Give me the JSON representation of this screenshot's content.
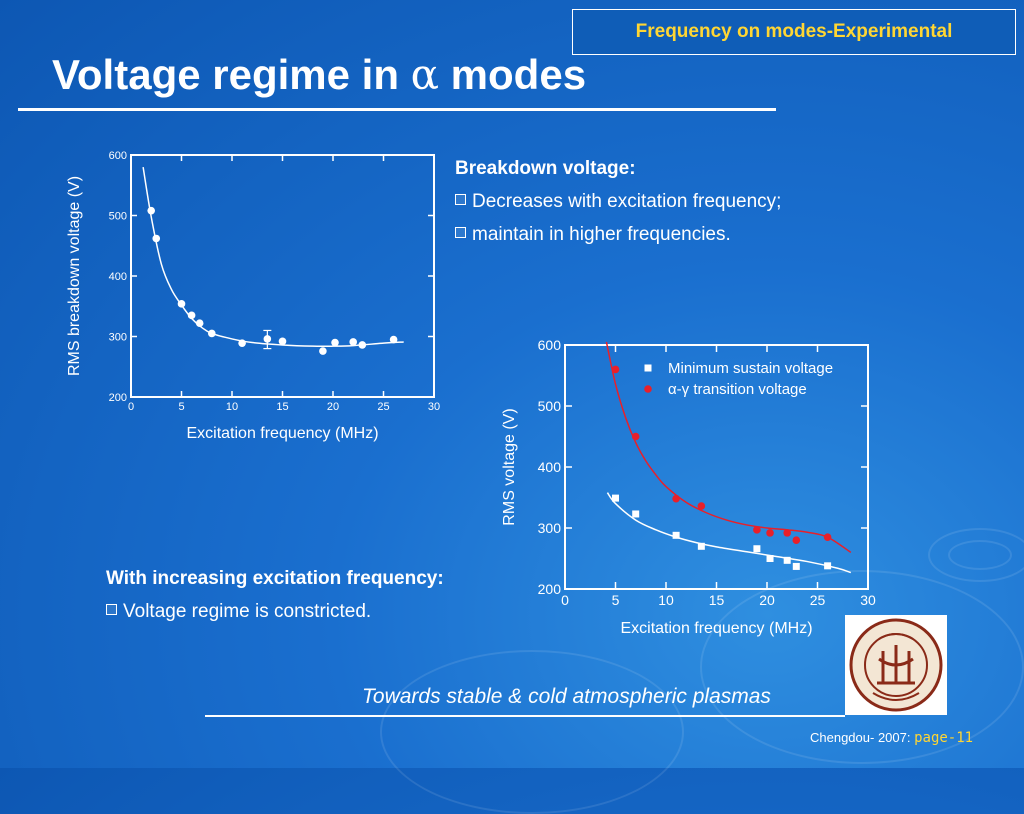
{
  "slide": {
    "section_tag": "Frequency on modes-Experimental",
    "title_prefix": "Voltage regime in ",
    "title_symbol": "α",
    "title_suffix": " modes",
    "bullets_top": {
      "heading": "Breakdown voltage:",
      "items": [
        "Decreases with excitation frequency;",
        "maintain in higher frequencies."
      ]
    },
    "bullets_bottom": {
      "heading": "With increasing excitation frequency:",
      "items": [
        "Voltage regime is constricted."
      ]
    },
    "footer_tagline": "Towards stable & cold atmospheric plasmas",
    "footer_location": "Chengdou- 2007: ",
    "page_number": "page-11",
    "logo_name": "donghua-university-seal"
  },
  "chart_data": [
    {
      "type": "scatter",
      "xlabel": "Excitation frequency (MHz)",
      "ylabel": "RMS breakdown voltage (V)",
      "xlim": [
        0,
        30
      ],
      "ylim": [
        200,
        600
      ],
      "xticks": [
        0,
        5,
        10,
        15,
        20,
        25,
        30
      ],
      "yticks": [
        200,
        300,
        400,
        500,
        600
      ],
      "grid": false,
      "series": [
        {
          "color": "#ffffff",
          "x": [
            2,
            2.5,
            5,
            6,
            6.8,
            8,
            11,
            13.5,
            15,
            19,
            20.2,
            22,
            22.9,
            26
          ],
          "y": [
            508,
            462,
            354,
            335,
            322,
            305,
            289,
            296,
            292,
            276,
            290,
            291,
            286,
            295
          ],
          "error_bar": {
            "x": 13.5,
            "y": 296,
            "low": 280,
            "high": 310
          },
          "fit_curve": {
            "x": [
              1.2,
              2,
              3,
              4,
              5,
              6,
              7,
              8,
              10,
              12,
              15,
              18,
              20,
              22,
              25,
              27
            ],
            "y": [
              580,
              498,
              420,
              378,
              352,
              330,
              315,
              305,
              296,
              290,
              286,
              284,
              284,
              285,
              289,
              291
            ]
          }
        }
      ]
    },
    {
      "type": "scatter",
      "xlabel": "Excitation frequency (MHz)",
      "ylabel": "RMS voltage (V)",
      "xlim": [
        0,
        30
      ],
      "ylim": [
        200,
        600
      ],
      "xticks": [
        0,
        5,
        10,
        15,
        20,
        25,
        30
      ],
      "yticks": [
        200,
        300,
        400,
        500,
        600
      ],
      "grid": false,
      "legend": "top-right",
      "series": [
        {
          "name": "Minimum sustain voltage",
          "marker": "square",
          "color": "#ffffff",
          "x": [
            5,
            7,
            11,
            13.5,
            19,
            20.3,
            22,
            22.9,
            26
          ],
          "y": [
            349,
            323,
            288,
            270,
            266,
            250,
            247,
            237,
            238
          ],
          "fit_curve": {
            "x": [
              4.2,
              5,
              7,
              9,
              11,
              13,
              15,
              18,
              21,
              24,
              27,
              28.3
            ],
            "y": [
              358,
              340,
              313,
              297,
              285,
              276,
              269,
              261,
              253,
              245,
              234,
              227
            ]
          }
        },
        {
          "name": "α-γ transition voltage",
          "marker": "circle",
          "color": "#e8202a",
          "x": [
            5,
            7,
            11,
            13.5,
            19,
            20.3,
            22,
            22.9,
            26
          ],
          "y": [
            560,
            450,
            348,
            336,
            297,
            292,
            292,
            280,
            285
          ],
          "fit_curve": {
            "x": [
              4.1,
              5,
              6,
              7,
              8,
              9,
              10,
              12,
              14,
              16,
              18,
              20,
              22,
              24,
              26,
              28.3
            ],
            "y": [
              605,
              536,
              481,
              440,
              410,
              387,
              368,
              342,
              325,
              313,
              305,
              300,
              297,
              293,
              285,
              260
            ]
          }
        }
      ]
    }
  ]
}
